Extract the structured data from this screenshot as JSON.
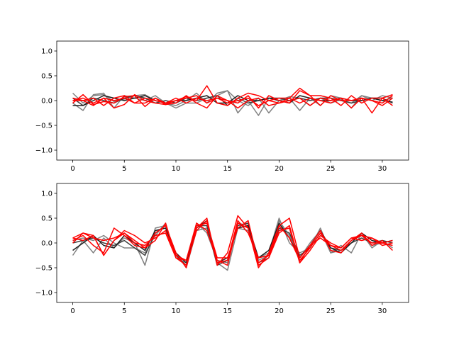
{
  "chart_data": [
    {
      "type": "line",
      "xlim": [
        -1.55,
        32.55
      ],
      "ylim": [
        -1.2,
        1.2
      ],
      "xticks": [
        0,
        5,
        10,
        15,
        20,
        25,
        30
      ],
      "yticks": [
        -1.0,
        -0.5,
        0.0,
        0.5,
        1.0
      ],
      "xtick_labels": [
        "0",
        "5",
        "10",
        "15",
        "20",
        "25",
        "30"
      ],
      "ytick_labels": [
        "−1.0",
        "−0.5",
        "0.0",
        "0.5",
        "1.0"
      ],
      "grid": false,
      "x": [
        0,
        1,
        2,
        3,
        4,
        5,
        6,
        7,
        8,
        9,
        10,
        11,
        12,
        13,
        14,
        15,
        16,
        17,
        18,
        19,
        20,
        21,
        22,
        23,
        24,
        25,
        26,
        27,
        28,
        29,
        30,
        31
      ],
      "series": [
        {
          "color": "#808080",
          "values": [
            0.15,
            -0.05,
            0.1,
            0.12,
            -0.02,
            0.03,
            0.1,
            0.12,
            0.0,
            -0.05,
            -0.1,
            0.0,
            0.15,
            -0.05,
            0.15,
            0.2,
            -0.25,
            0.0,
            -0.3,
            0.05,
            0.0,
            0.08,
            0.05,
            -0.1,
            0.05,
            -0.05,
            0.02,
            -0.05,
            0.1,
            0.05,
            0.0,
            0.05
          ]
        },
        {
          "color": "#808080",
          "values": [
            -0.05,
            -0.2,
            0.12,
            0.15,
            -0.15,
            0.1,
            0.05,
            0.0,
            0.1,
            -0.05,
            -0.15,
            -0.05,
            -0.05,
            0.05,
            0.1,
            0.2,
            0.0,
            -0.1,
            0.05,
            -0.25,
            0.0,
            0.05,
            -0.2,
            0.05,
            -0.1,
            0.1,
            0.05,
            -0.15,
            0.1,
            0.0,
            0.1,
            0.05
          ]
        },
        {
          "color": "#404040",
          "values": [
            0.05,
            -0.1,
            0.05,
            0.0,
            -0.05,
            0.05,
            0.1,
            0.05,
            -0.05,
            0.0,
            -0.05,
            0.05,
            0.0,
            0.05,
            0.1,
            -0.1,
            0.05,
            -0.05,
            0.0,
            0.05,
            0.05,
            0.0,
            0.05,
            0.0,
            0.05,
            0.05,
            0.0,
            -0.05,
            0.0,
            0.05,
            0.05,
            -0.05
          ]
        },
        {
          "color": "#202020",
          "values": [
            -0.1,
            -0.1,
            0.0,
            0.1,
            0.05,
            0.0,
            0.05,
            0.1,
            0.0,
            -0.05,
            0.0,
            0.0,
            0.05,
            0.1,
            -0.05,
            -0.05,
            0.1,
            0.0,
            0.0,
            0.05,
            0.0,
            -0.05,
            0.1,
            0.05,
            0.0,
            0.0,
            0.05,
            0.0,
            0.0,
            0.05,
            0.0,
            -0.03
          ]
        },
        {
          "color": "#ff0000",
          "values": [
            -0.05,
            0.12,
            -0.08,
            -0.02,
            -0.05,
            0.08,
            0.1,
            -0.12,
            0.05,
            -0.08,
            0.0,
            0.08,
            0.0,
            0.3,
            -0.05,
            -0.1,
            0.05,
            0.15,
            0.1,
            0.0,
            -0.05,
            0.05,
            0.25,
            0.1,
            0.1,
            0.05,
            -0.1,
            0.1,
            -0.05,
            0.05,
            0.05,
            -0.1
          ]
        },
        {
          "color": "#ff0000",
          "values": [
            0.0,
            0.0,
            -0.1,
            0.05,
            -0.15,
            -0.08,
            0.12,
            0.0,
            -0.05,
            -0.08,
            -0.05,
            0.1,
            -0.05,
            -0.15,
            0.1,
            0.0,
            -0.05,
            0.1,
            -0.15,
            0.1,
            0.0,
            -0.05,
            0.2,
            0.1,
            -0.1,
            0.1,
            0.0,
            0.0,
            0.05,
            -0.25,
            0.05,
            0.12
          ]
        },
        {
          "color": "#ff0000",
          "values": [
            0.05,
            0.0,
            0.05,
            -0.1,
            0.05,
            0.1,
            -0.05,
            0.05,
            0.0,
            -0.05,
            0.05,
            -0.05,
            0.05,
            0.0,
            0.05,
            -0.05,
            0.0,
            0.05,
            -0.1,
            0.0,
            0.05,
            0.05,
            -0.05,
            0.05,
            0.0,
            -0.05,
            0.05,
            -0.15,
            0.05,
            0.0,
            -0.1,
            0.05
          ]
        },
        {
          "color": "#ff0000",
          "values": [
            0.0,
            0.05,
            -0.05,
            0.05,
            0.0,
            0.05,
            -0.05,
            -0.05,
            0.05,
            -0.05,
            0.0,
            0.05,
            0.1,
            -0.05,
            0.05,
            0.0,
            -0.15,
            0.0,
            0.05,
            -0.1,
            -0.05,
            0.0,
            0.05,
            -0.1,
            0.05,
            0.0,
            0.05,
            0.0,
            0.05,
            0.0,
            -0.05,
            0.1
          ]
        }
      ]
    },
    {
      "type": "line",
      "xlim": [
        -1.55,
        32.55
      ],
      "ylim": [
        -1.2,
        1.2
      ],
      "xticks": [
        0,
        5,
        10,
        15,
        20,
        25,
        30
      ],
      "yticks": [
        -1.0,
        -0.5,
        0.0,
        0.5,
        1.0
      ],
      "xtick_labels": [
        "0",
        "5",
        "10",
        "15",
        "20",
        "25",
        "30"
      ],
      "ytick_labels": [
        "−1.0",
        "−0.5",
        "0.0",
        "0.5",
        "1.0"
      ],
      "grid": false,
      "x": [
        0,
        1,
        2,
        3,
        4,
        5,
        6,
        7,
        8,
        9,
        10,
        11,
        12,
        13,
        14,
        15,
        16,
        17,
        18,
        19,
        20,
        21,
        22,
        23,
        24,
        25,
        26,
        27,
        28,
        29,
        30,
        31
      ],
      "series": [
        {
          "color": "#808080",
          "values": [
            -0.25,
            0.05,
            -0.2,
            0.1,
            -0.1,
            0.1,
            0.0,
            -0.45,
            0.3,
            0.35,
            -0.2,
            -0.5,
            0.25,
            0.3,
            -0.4,
            -0.55,
            0.3,
            0.25,
            -0.3,
            -0.2,
            0.5,
            0.0,
            -0.2,
            -0.1,
            0.3,
            -0.2,
            -0.05,
            -0.2,
            0.2,
            -0.1,
            0.05,
            -0.1
          ]
        },
        {
          "color": "#808080",
          "values": [
            0.05,
            0.1,
            0.05,
            0.15,
            0.0,
            -0.1,
            -0.1,
            -0.2,
            0.15,
            0.4,
            -0.3,
            -0.4,
            0.4,
            0.2,
            -0.35,
            -0.4,
            0.4,
            0.35,
            -0.35,
            -0.25,
            0.45,
            0.15,
            -0.3,
            0.0,
            0.25,
            -0.2,
            -0.15,
            0.05,
            0.15,
            -0.05,
            0.0,
            0.05
          ]
        },
        {
          "color": "#404040",
          "values": [
            0.0,
            0.05,
            0.1,
            0.0,
            -0.05,
            0.05,
            -0.1,
            -0.25,
            0.2,
            0.35,
            -0.25,
            -0.45,
            0.35,
            0.35,
            -0.45,
            -0.35,
            0.35,
            0.4,
            -0.4,
            -0.3,
            0.3,
            0.2,
            -0.25,
            -0.1,
            0.2,
            -0.1,
            -0.15,
            0.0,
            0.1,
            0.0,
            0.05,
            0.0
          ]
        },
        {
          "color": "#202020",
          "values": [
            -0.15,
            0.0,
            0.15,
            -0.05,
            -0.1,
            0.15,
            0.0,
            -0.15,
            0.25,
            0.3,
            -0.2,
            -0.4,
            0.3,
            0.45,
            -0.4,
            -0.3,
            0.3,
            0.35,
            -0.3,
            -0.15,
            0.4,
            0.1,
            -0.3,
            -0.05,
            0.25,
            -0.1,
            -0.2,
            0.0,
            0.2,
            0.05,
            0.0,
            0.05
          ]
        },
        {
          "color": "#ff0000",
          "values": [
            0.1,
            0.2,
            0.15,
            -0.25,
            0.05,
            0.2,
            0.05,
            -0.1,
            0.2,
            0.35,
            -0.2,
            -0.5,
            0.3,
            0.5,
            -0.45,
            -0.2,
            0.55,
            0.3,
            -0.5,
            -0.2,
            0.35,
            0.5,
            -0.3,
            -0.05,
            0.25,
            -0.15,
            -0.2,
            0.05,
            0.2,
            -0.05,
            0.05,
            -0.15
          ]
        },
        {
          "color": "#ff0000",
          "values": [
            0.05,
            0.15,
            -0.05,
            -0.2,
            0.3,
            0.15,
            -0.05,
            -0.1,
            0.05,
            0.4,
            -0.3,
            -0.35,
            0.4,
            0.25,
            -0.35,
            -0.45,
            0.4,
            0.3,
            -0.45,
            -0.3,
            0.2,
            0.35,
            -0.4,
            -0.15,
            0.15,
            0.0,
            -0.1,
            0.1,
            0.05,
            0.1,
            0.0,
            0.05
          ]
        },
        {
          "color": "#ff0000",
          "values": [
            0.0,
            0.2,
            0.1,
            0.05,
            0.1,
            0.2,
            0.0,
            -0.05,
            0.15,
            0.2,
            -0.3,
            -0.45,
            0.25,
            0.45,
            -0.4,
            -0.35,
            0.45,
            0.2,
            -0.3,
            -0.25,
            0.35,
            0.1,
            -0.35,
            -0.1,
            0.2,
            -0.05,
            -0.15,
            0.05,
            0.15,
            0.1,
            -0.05,
            0.0
          ]
        },
        {
          "color": "#ff0000",
          "values": [
            0.1,
            0.05,
            0.15,
            -0.25,
            0.05,
            0.25,
            0.15,
            0.0,
            0.1,
            0.25,
            -0.25,
            -0.35,
            0.35,
            0.4,
            -0.3,
            -0.3,
            0.3,
            0.45,
            -0.4,
            -0.25,
            0.25,
            0.3,
            -0.4,
            -0.05,
            0.1,
            -0.05,
            -0.1,
            0.1,
            0.15,
            0.0,
            0.0,
            -0.05
          ]
        }
      ]
    }
  ]
}
